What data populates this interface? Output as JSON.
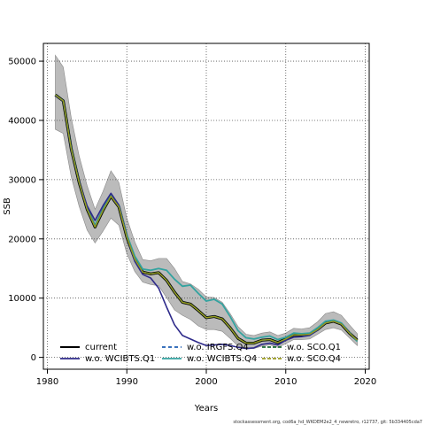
{
  "chart_data": {
    "type": "line",
    "xlabel": "Years",
    "ylabel": "SSB",
    "xlim": [
      1979.5,
      2020.5
    ],
    "ylim": [
      -2000,
      53000
    ],
    "x_ticks": [
      1980,
      1990,
      2000,
      2010,
      2020
    ],
    "y_ticks": [
      0,
      10000,
      20000,
      30000,
      40000,
      50000
    ],
    "grid": true,
    "legend_position": "bottom-left",
    "footnote": "stockassessment.org, cod6a_hd_WKDEM2e2_4_newretro, r12737, git: 5b334405cda7",
    "x": [
      1981,
      1982,
      1983,
      1984,
      1985,
      1986,
      1987,
      1988,
      1989,
      1990,
      1991,
      1992,
      1993,
      1994,
      1995,
      1996,
      1997,
      1998,
      1999,
      2000,
      2001,
      2002,
      2003,
      2004,
      2005,
      2006,
      2007,
      2008,
      2009,
      2010,
      2011,
      2012,
      2013,
      2014,
      2015,
      2016,
      2017,
      2018,
      2019
    ],
    "band": {
      "upper": [
        51000,
        49000,
        40500,
        34000,
        29000,
        25000,
        28000,
        31500,
        29500,
        23500,
        19500,
        16500,
        16300,
        16700,
        16700,
        15000,
        12800,
        12400,
        11500,
        10200,
        10100,
        9300,
        7400,
        5200,
        3900,
        3700,
        4100,
        4300,
        3700,
        4100,
        4900,
        4800,
        5000,
        6000,
        7400,
        7700,
        7100,
        5500,
        4000
      ],
      "lower": [
        38500,
        37800,
        30500,
        25500,
        21500,
        19300,
        21300,
        23500,
        22300,
        17500,
        14500,
        12700,
        12300,
        12100,
        10100,
        8000,
        7100,
        6400,
        5300,
        4700,
        4700,
        4400,
        3200,
        1900,
        1400,
        1500,
        1900,
        2100,
        1700,
        2300,
        3000,
        3000,
        3100,
        3900,
        4700,
        5000,
        4600,
        3300,
        2000
      ]
    },
    "series": [
      {
        "name": "current",
        "color": "#000000",
        "dash": "",
        "values": [
          44300,
          43300,
          35200,
          29500,
          25000,
          22000,
          24800,
          27200,
          25400,
          20300,
          16600,
          14400,
          14100,
          14300,
          13000,
          11000,
          9300,
          9000,
          7900,
          6700,
          6900,
          6500,
          5000,
          3200,
          2400,
          2400,
          2900,
          3000,
          2500,
          3100,
          3800,
          3800,
          3900,
          4700,
          5800,
          6100,
          5600,
          4100,
          2900
        ]
      },
      {
        "name": "w.o. WCIBTS.Q1",
        "color": "#2e2a8a",
        "dash": "",
        "values": [
          44200,
          43300,
          35000,
          29600,
          25600,
          23100,
          25600,
          27700,
          25700,
          20400,
          16200,
          14000,
          13400,
          11700,
          8500,
          5500,
          3700,
          3100,
          2500,
          2000,
          2100,
          2200,
          2000,
          1700,
          1500,
          1600,
          2200,
          2400,
          2100,
          2900,
          3400,
          3500,
          3700,
          4600,
          5800,
          6100,
          5600,
          4200,
          null
        ]
      },
      {
        "name": "w.o. IRGFS.Q4",
        "color": "#1f5fb4",
        "dash": "4,3",
        "values": [
          44300,
          43300,
          35200,
          29500,
          25000,
          22000,
          24800,
          27200,
          25400,
          20300,
          16600,
          14400,
          14100,
          14300,
          13000,
          11000,
          9300,
          9000,
          7900,
          6700,
          6900,
          6500,
          5000,
          3200,
          2400,
          2400,
          2900,
          3000,
          2500,
          3100,
          3800,
          3800,
          3900,
          4700,
          5800,
          6100,
          5600,
          4100,
          2900
        ]
      },
      {
        "name": "w.o. WCIBTS.Q4",
        "color": "#33a3a0",
        "dash": "",
        "values": [
          44300,
          43300,
          35300,
          29600,
          25100,
          22300,
          25000,
          27500,
          25700,
          20700,
          17100,
          14900,
          14700,
          15000,
          14700,
          13200,
          12000,
          12200,
          10800,
          9500,
          9800,
          9000,
          6900,
          4500,
          3300,
          3100,
          3400,
          3600,
          3000,
          3400,
          4100,
          4000,
          4100,
          5000,
          6100,
          6300,
          5800,
          4200,
          2700
        ]
      },
      {
        "name": "w.o. SCO.Q1",
        "color": "#1a6a35",
        "dash": "",
        "values": [
          44300,
          43300,
          35200,
          29500,
          25000,
          22000,
          24800,
          27200,
          25400,
          20300,
          16600,
          14400,
          14100,
          14300,
          13000,
          11000,
          9300,
          9000,
          7900,
          6700,
          6900,
          6500,
          5000,
          3200,
          2400,
          2400,
          2900,
          3000,
          2500,
          3100,
          3800,
          3800,
          3900,
          4700,
          5800,
          6100,
          5600,
          4100,
          2900
        ]
      },
      {
        "name": "w.o. SCO.Q4",
        "color": "#9a9a1e",
        "dash": "",
        "values": [
          44300,
          43300,
          35200,
          29500,
          25000,
          22000,
          24800,
          27200,
          25400,
          20300,
          16600,
          14400,
          14100,
          14300,
          13000,
          11000,
          9300,
          9000,
          7900,
          6700,
          6900,
          6500,
          5000,
          3200,
          2400,
          2400,
          2900,
          3000,
          2500,
          3100,
          3800,
          3800,
          3900,
          4700,
          5800,
          6100,
          5600,
          4100,
          2900
        ]
      }
    ],
    "band_color": "#bbbbbb"
  }
}
